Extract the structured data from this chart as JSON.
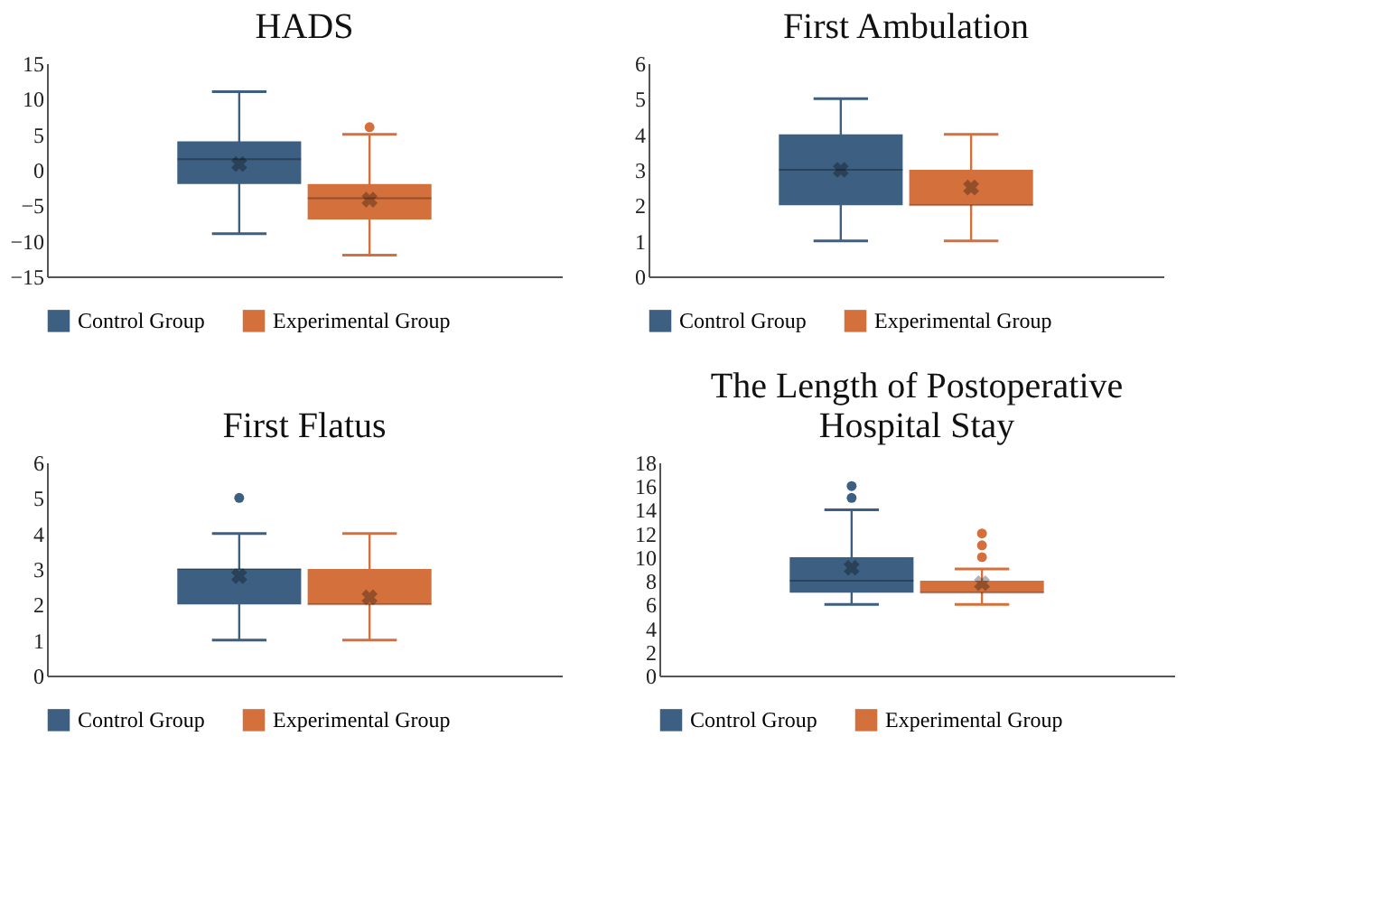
{
  "chart_data": [
    {
      "type": "box",
      "title": "HADS",
      "categories": [
        null
      ],
      "ylim": [
        -15,
        15
      ],
      "yticks": [
        -15,
        -10,
        -5,
        0,
        5,
        10,
        15
      ],
      "grid": false,
      "legend": "bottom",
      "tick_labels": "y",
      "series": [
        {
          "name": "Control Group",
          "color": "#3c5f82",
          "boxes": [
            {
              "low": -9,
              "q1": -2,
              "median": 1.5,
              "q3": 4,
              "high": 11,
              "mean": 0.8
            }
          ]
        },
        {
          "name": "Experimental Group",
          "color": "#d4703b",
          "boxes": [
            {
              "low": -12,
              "q1": -7,
              "median": -4,
              "q3": -2,
              "high": 5,
              "mean": -4.2,
              "outliers": [
                6
              ]
            }
          ]
        }
      ]
    },
    {
      "type": "box",
      "title": "First Ambulation",
      "categories": [
        null
      ],
      "ylim": [
        0,
        6
      ],
      "yticks": [
        0,
        1,
        2,
        3,
        4,
        5,
        6
      ],
      "grid": false,
      "legend": "bottom",
      "tick_labels": "y",
      "series": [
        {
          "name": "Control Group",
          "color": "#3c5f82",
          "boxes": [
            {
              "low": 1,
              "q1": 2,
              "median": 3,
              "q3": 4,
              "high": 5,
              "mean": 3
            }
          ]
        },
        {
          "name": "Experimental Group",
          "color": "#d4703b",
          "boxes": [
            {
              "low": 1,
              "q1": 2,
              "median": 2,
              "q3": 3,
              "high": 4,
              "mean": 2.5
            }
          ]
        }
      ]
    },
    {
      "type": "box",
      "title": "First Flatus",
      "categories": [
        null
      ],
      "ylim": [
        0,
        6
      ],
      "yticks": [
        0,
        1,
        2,
        3,
        4,
        5,
        6
      ],
      "grid": false,
      "legend": "bottom",
      "tick_labels": "y",
      "series": [
        {
          "name": "Control Group",
          "color": "#3c5f82",
          "boxes": [
            {
              "low": 1,
              "q1": 2,
              "median": 3,
              "q3": 3,
              "high": 4,
              "mean": 2.8,
              "outliers": [
                5
              ]
            }
          ]
        },
        {
          "name": "Experimental Group",
          "color": "#d4703b",
          "boxes": [
            {
              "low": 1,
              "q1": 2,
              "median": 2,
              "q3": 3,
              "high": 4,
              "mean": 2.2
            }
          ]
        }
      ]
    },
    {
      "type": "box",
      "title": "The Length of Postoperative Hospital Stay",
      "categories": [
        null
      ],
      "ylim": [
        0,
        18
      ],
      "yticks": [
        0,
        2,
        4,
        6,
        8,
        10,
        12,
        14,
        16,
        18
      ],
      "grid": false,
      "legend": "bottom",
      "tick_labels": "y",
      "series": [
        {
          "name": "Control Group",
          "color": "#3c5f82",
          "boxes": [
            {
              "low": 6,
              "q1": 7,
              "median": 8,
              "q3": 10,
              "high": 14,
              "mean": 9.1,
              "outliers": [
                15,
                16
              ]
            }
          ]
        },
        {
          "name": "Experimental Group",
          "color": "#d4703b",
          "boxes": [
            {
              "low": 6,
              "q1": 7,
              "median": 7,
              "q3": 8,
              "high": 9,
              "mean": 7.8,
              "outliers": [
                10,
                11,
                12
              ]
            }
          ]
        }
      ]
    }
  ]
}
